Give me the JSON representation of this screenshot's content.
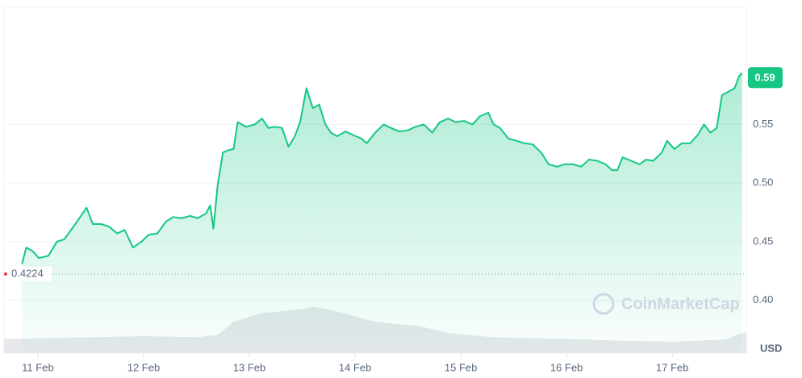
{
  "chart_data": {
    "type": "line",
    "x": [
      -0.15,
      -0.11,
      -0.05,
      0.01,
      0.1,
      0.18,
      0.25,
      0.33,
      0.4,
      0.46,
      0.52,
      0.6,
      0.67,
      0.75,
      0.82,
      0.9,
      0.98,
      1.05,
      1.13,
      1.21,
      1.28,
      1.36,
      1.44,
      1.51,
      1.59,
      1.63,
      1.66,
      1.7,
      1.75,
      1.8,
      1.85,
      1.89,
      1.97,
      2.05,
      2.12,
      2.18,
      2.24,
      2.31,
      2.37,
      2.43,
      2.48,
      2.54,
      2.6,
      2.66,
      2.72,
      2.77,
      2.83,
      2.91,
      2.98,
      3.06,
      3.11,
      3.19,
      3.27,
      3.34,
      3.42,
      3.5,
      3.57,
      3.65,
      3.73,
      3.8,
      3.88,
      3.95,
      4.03,
      4.11,
      4.18,
      4.26,
      4.31,
      4.37,
      4.45,
      4.53,
      4.6,
      4.68,
      4.76,
      4.83,
      4.91,
      4.98,
      5.06,
      5.14,
      5.21,
      5.29,
      5.37,
      5.43,
      5.48,
      5.53,
      5.61,
      5.69,
      5.75,
      5.82,
      5.9,
      5.95,
      6.02,
      6.09,
      6.17,
      6.24,
      6.3,
      6.36,
      6.42,
      6.47,
      6.53,
      6.59,
      6.63,
      6.66
    ],
    "series": [
      {
        "color": "#16c784",
        "values": [
          0.431,
          0.445,
          0.442,
          0.436,
          0.438,
          0.45,
          0.452,
          0.462,
          0.471,
          0.479,
          0.465,
          0.465,
          0.463,
          0.457,
          0.46,
          0.445,
          0.45,
          0.456,
          0.457,
          0.467,
          0.471,
          0.47,
          0.472,
          0.47,
          0.474,
          0.481,
          0.461,
          0.498,
          0.526,
          0.528,
          0.529,
          0.552,
          0.548,
          0.55,
          0.555,
          0.547,
          0.548,
          0.547,
          0.531,
          0.54,
          0.552,
          0.581,
          0.564,
          0.567,
          0.55,
          0.543,
          0.54,
          0.544,
          0.541,
          0.538,
          0.534,
          0.543,
          0.55,
          0.547,
          0.544,
          0.545,
          0.548,
          0.55,
          0.543,
          0.552,
          0.555,
          0.552,
          0.553,
          0.55,
          0.557,
          0.56,
          0.55,
          0.547,
          0.538,
          0.536,
          0.534,
          0.533,
          0.526,
          0.516,
          0.514,
          0.516,
          0.516,
          0.514,
          0.52,
          0.519,
          0.516,
          0.511,
          0.511,
          0.522,
          0.519,
          0.516,
          0.52,
          0.519,
          0.526,
          0.536,
          0.529,
          0.534,
          0.534,
          0.541,
          0.55,
          0.543,
          0.547,
          0.575,
          0.578,
          0.581,
          0.591,
          0.594
        ]
      }
    ],
    "volume": {
      "color": "#e6e8ec",
      "x": [
        -0.32,
        0,
        0.5,
        1.0,
        1.5,
        1.7,
        1.85,
        2.1,
        2.5,
        2.6,
        2.8,
        3.2,
        3.6,
        3.9,
        4.3,
        5.0,
        5.5,
        6.0,
        6.5,
        6.7
      ],
      "values": [
        25,
        26,
        28,
        30,
        28,
        32,
        55,
        70,
        78,
        82,
        75,
        55,
        48,
        35,
        28,
        25,
        22,
        20,
        24,
        38
      ],
      "ylim": [
        0,
        100
      ]
    },
    "xlim": [
      -0.32,
      6.7
    ],
    "xticks": [
      {
        "value": 0,
        "label": "11 Feb"
      },
      {
        "value": 1,
        "label": "12 Feb"
      },
      {
        "value": 2,
        "label": "13 Feb"
      },
      {
        "value": 3,
        "label": "14 Feb"
      },
      {
        "value": 4,
        "label": "15 Feb"
      },
      {
        "value": 5,
        "label": "16 Feb"
      },
      {
        "value": 6,
        "label": "17 Feb"
      }
    ],
    "ylim": [
      0.355,
      0.65
    ],
    "yticks": [
      {
        "value": 0.4,
        "label": "0.40"
      },
      {
        "value": 0.45,
        "label": "0.45"
      },
      {
        "value": 0.5,
        "label": "0.50"
      },
      {
        "value": 0.55,
        "label": "0.55"
      }
    ],
    "grid": true,
    "reference_value": 0.4224,
    "last_price": 0.59,
    "currency": "USD",
    "watermark": "CoinMarketCap"
  }
}
